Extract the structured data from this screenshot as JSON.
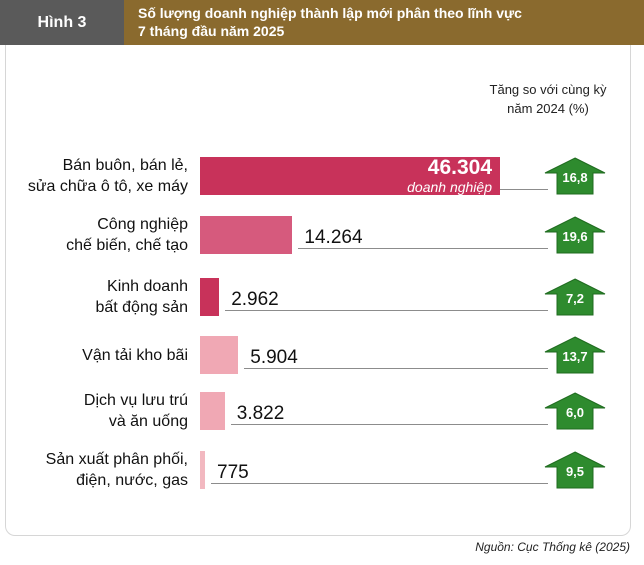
{
  "figure_label": "Hình 3",
  "title_line1": "Số lượng doanh nghiệp thành lập mới phân theo lĩnh vực",
  "title_line2": "7 tháng đầu năm 2025",
  "growth_header_line1": "Tăng so với cùng kỳ",
  "growth_header_line2": "năm 2024 (%)",
  "source": "Nguồn: Cục Thống kê (2025)",
  "colors": {
    "fig_label_bg": "#5a5a5a",
    "title_bg": "#8a6a2e",
    "bar_colors": [
      "#c8325a",
      "#d65a7d",
      "#c8325a",
      "#f0a8b4",
      "#f0a8b4",
      "#f2b8c0"
    ],
    "arrow_fill": "#2e8b2e",
    "arrow_stroke": "#1f6b1f"
  },
  "chart_data": {
    "type": "bar",
    "orientation": "horizontal",
    "categories": [
      [
        "Bán buôn, bán lẻ,",
        "sửa chữa ô tô, xe máy"
      ],
      [
        "Công nghiệp",
        "chế biến, chế tạo"
      ],
      [
        "Kinh doanh",
        "bất động sản"
      ],
      [
        "Vận tải kho bãi"
      ],
      [
        "Dịch vụ lưu trú",
        "và ăn uống"
      ],
      [
        "Sản xuất phân phối,",
        "điện, nước, gas"
      ]
    ],
    "values": [
      46304,
      14264,
      2962,
      5904,
      3822,
      775
    ],
    "value_labels": [
      "46.304",
      "14.264",
      "2.962",
      "5.904",
      "3.822",
      "775"
    ],
    "first_value_unit": "doanh nghiệp",
    "growth_labels": [
      "16,8",
      "19,6",
      "7,2",
      "13,7",
      "6,0",
      "9,5"
    ],
    "growth_values": [
      16.8,
      19.6,
      7.2,
      13.7,
      6.0,
      9.5
    ],
    "grid": false
  }
}
